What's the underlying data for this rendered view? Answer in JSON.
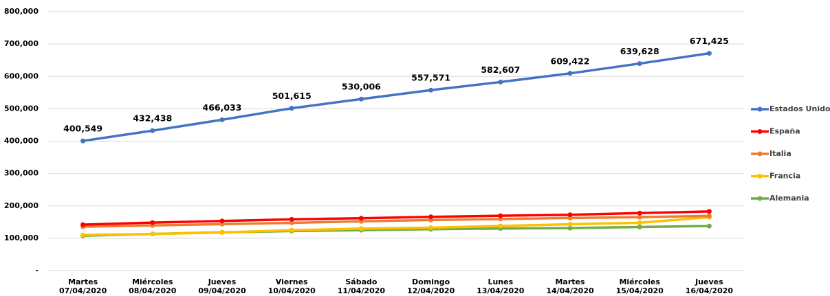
{
  "chart_data": {
    "type": "line",
    "categories": [
      [
        "Martes",
        "07/04/2020"
      ],
      [
        "Miércoles",
        "08/04/2020"
      ],
      [
        "Jueves",
        "09/04/2020"
      ],
      [
        "Viernes",
        "10/04/2020"
      ],
      [
        "Sábado",
        "11/04/2020"
      ],
      [
        "Domingo",
        "12/04/2020"
      ],
      [
        "Lunes",
        "13/04/2020"
      ],
      [
        "Martes",
        "14/04/2020"
      ],
      [
        "Miércoles",
        "15/04/2020"
      ],
      [
        "Jueves",
        "16/04/2020"
      ]
    ],
    "series": [
      {
        "name": "Estados Unidos",
        "color": "#4472c4",
        "values": [
          400549,
          432438,
          466033,
          501615,
          530006,
          557571,
          582607,
          609422,
          639628,
          671425
        ],
        "value_labels": [
          "400,549",
          "432,438",
          "466,033",
          "501,615",
          "530,006",
          "557,571",
          "582,607",
          "609,422",
          "639,628",
          "671,425"
        ]
      },
      {
        "name": "España",
        "color": "#ff0000",
        "values": [
          141942,
          148220,
          153222,
          158273,
          161852,
          166019,
          169496,
          172541,
          177633,
          182816
        ]
      },
      {
        "name": "Italia",
        "color": "#ed7d31",
        "values": [
          135586,
          139422,
          143626,
          147577,
          152271,
          156363,
          159516,
          162488,
          165155,
          168941
        ]
      },
      {
        "name": "Francia",
        "color": "#ffc000",
        "values": [
          110065,
          112950,
          117749,
          124869,
          129654,
          132591,
          137877,
          143303,
          147863,
          165027
        ]
      },
      {
        "name": "Alemania",
        "color": "#70ad47",
        "values": [
          107663,
          113296,
          118181,
          122171,
          124908,
          127854,
          130072,
          131359,
          134753,
          137698
        ]
      }
    ],
    "ylim": [
      0,
      800000
    ],
    "yticks": [
      {
        "value": 0,
        "label": "-"
      },
      {
        "value": 100000,
        "label": "100,000"
      },
      {
        "value": 200000,
        "label": "200,000"
      },
      {
        "value": 300000,
        "label": "300,000"
      },
      {
        "value": 400000,
        "label": "400,000"
      },
      {
        "value": 500000,
        "label": "500,000"
      },
      {
        "value": 600000,
        "label": "600,000"
      },
      {
        "value": 700000,
        "label": "700,000"
      },
      {
        "value": 800000,
        "label": "800,000"
      }
    ],
    "grid": true,
    "legend": "right"
  }
}
